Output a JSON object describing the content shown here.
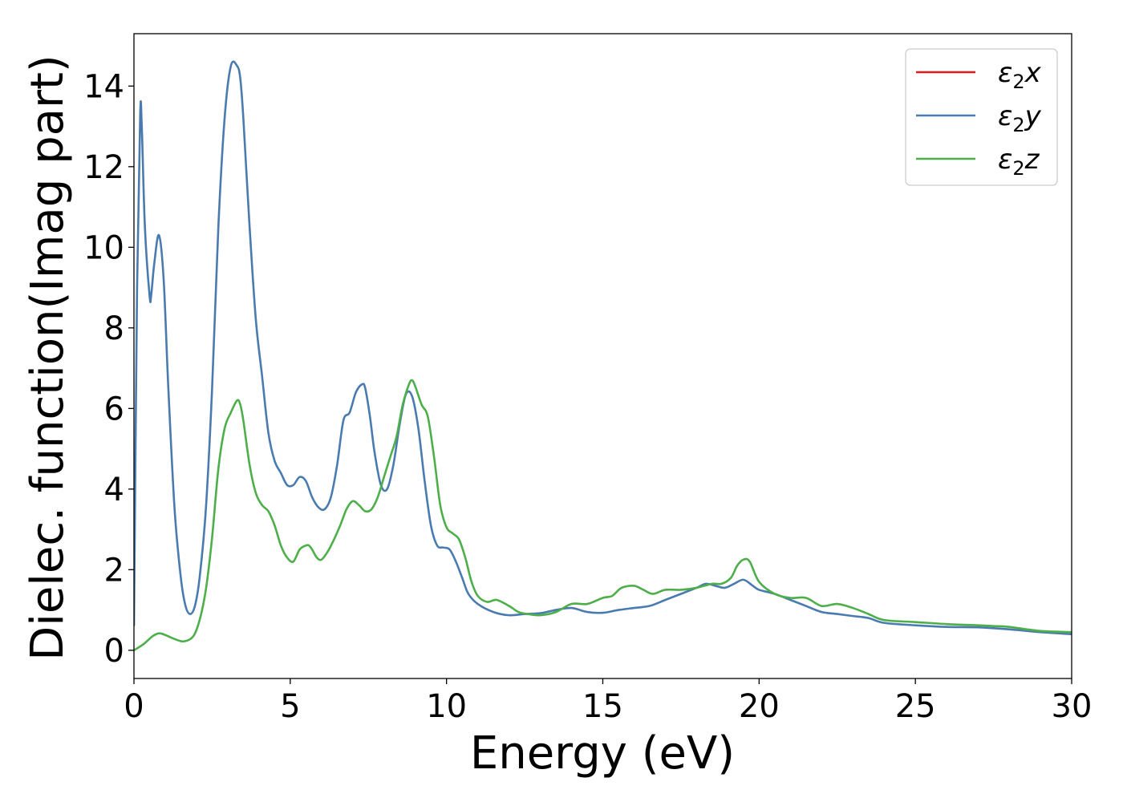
{
  "chart_data": {
    "type": "line",
    "title": "",
    "xlabel": "Energy (eV)",
    "ylabel": "Dielec. function(Imag part)",
    "xlim": [
      0,
      30
    ],
    "ylim": [
      -0.7,
      15.3
    ],
    "xticks": [
      0,
      5,
      10,
      15,
      20,
      25,
      30
    ],
    "yticks": [
      0,
      2,
      4,
      6,
      8,
      10,
      12,
      14
    ],
    "grid": false,
    "legend_position": "top-right",
    "series": [
      {
        "name": "ε2x",
        "legend_base": "ε",
        "legend_sub": "2",
        "legend_suffix": "x",
        "color": "#e41a1c",
        "x": [
          0,
          0.1,
          0.2,
          0.25,
          0.35,
          0.5,
          0.55,
          0.65,
          0.8,
          0.95,
          1.1,
          1.3,
          1.5,
          1.65,
          1.8,
          1.95,
          2.1,
          2.3,
          2.5,
          2.7,
          2.9,
          3.1,
          3.3,
          3.4,
          3.5,
          3.7,
          3.9,
          4.1,
          4.3,
          4.5,
          4.7,
          4.9,
          5.1,
          5.3,
          5.5,
          5.7,
          5.9,
          6.1,
          6.3,
          6.5,
          6.7,
          6.9,
          7.1,
          7.3,
          7.4,
          7.55,
          7.7,
          7.9,
          8.1,
          8.3,
          8.5,
          8.7,
          8.9,
          9.1,
          9.3,
          9.5,
          9.7,
          9.9,
          10.1,
          10.3,
          10.5,
          10.7,
          11,
          11.5,
          12,
          12.5,
          13,
          13.5,
          14,
          14.5,
          15,
          15.5,
          16,
          16.5,
          17,
          17.5,
          18,
          18.3,
          18.6,
          18.9,
          19.2,
          19.5,
          19.8,
          20,
          20.5,
          21,
          21.5,
          22,
          22.5,
          23,
          23.5,
          24,
          25,
          26,
          27,
          28,
          29,
          30
        ],
        "values": [
          0.6,
          9,
          13.3,
          13,
          10.5,
          8.8,
          8.8,
          9.6,
          10.3,
          9.2,
          6.5,
          3.5,
          1.8,
          1.1,
          0.9,
          1.1,
          1.8,
          3.5,
          6.5,
          10.5,
          13.2,
          14.5,
          14.5,
          14.2,
          13.2,
          10.5,
          8.2,
          6.8,
          5.4,
          4.7,
          4.4,
          4.1,
          4.1,
          4.3,
          4.2,
          3.8,
          3.55,
          3.5,
          3.8,
          4.6,
          5.7,
          5.9,
          6.4,
          6.6,
          6.5,
          5.8,
          4.9,
          4.1,
          4,
          4.6,
          5.6,
          6.35,
          6.3,
          5.5,
          4.2,
          3.1,
          2.6,
          2.55,
          2.5,
          2.2,
          1.8,
          1.4,
          1.15,
          0.95,
          0.87,
          0.9,
          0.92,
          1.0,
          1.05,
          0.95,
          0.93,
          1.0,
          1.05,
          1.1,
          1.25,
          1.4,
          1.55,
          1.65,
          1.6,
          1.55,
          1.65,
          1.75,
          1.6,
          1.5,
          1.4,
          1.25,
          1.1,
          0.95,
          0.9,
          0.85,
          0.8,
          0.68,
          0.62,
          0.58,
          0.57,
          0.52,
          0.45,
          0.4
        ],
        "visible": false
      },
      {
        "name": "ε2y",
        "legend_base": "ε",
        "legend_sub": "2",
        "legend_suffix": "y",
        "color": "#4a7bb0",
        "x": [
          0,
          0.1,
          0.2,
          0.25,
          0.35,
          0.5,
          0.55,
          0.65,
          0.8,
          0.95,
          1.1,
          1.3,
          1.5,
          1.65,
          1.8,
          1.95,
          2.1,
          2.3,
          2.5,
          2.7,
          2.9,
          3.1,
          3.3,
          3.4,
          3.5,
          3.7,
          3.9,
          4.1,
          4.3,
          4.5,
          4.7,
          4.9,
          5.1,
          5.3,
          5.5,
          5.7,
          5.9,
          6.1,
          6.3,
          6.5,
          6.7,
          6.9,
          7.1,
          7.3,
          7.4,
          7.55,
          7.7,
          7.9,
          8.1,
          8.3,
          8.5,
          8.7,
          8.9,
          9.1,
          9.3,
          9.5,
          9.7,
          9.9,
          10.1,
          10.3,
          10.5,
          10.7,
          11,
          11.5,
          12,
          12.5,
          13,
          13.5,
          14,
          14.5,
          15,
          15.5,
          16,
          16.5,
          17,
          17.5,
          18,
          18.3,
          18.6,
          18.9,
          19.2,
          19.5,
          19.8,
          20,
          20.5,
          21,
          21.5,
          22,
          22.5,
          23,
          23.5,
          24,
          25,
          26,
          27,
          28,
          29,
          30
        ],
        "values": [
          0.6,
          9,
          13.3,
          13,
          10.5,
          8.8,
          8.8,
          9.6,
          10.3,
          9.2,
          6.5,
          3.5,
          1.8,
          1.1,
          0.9,
          1.1,
          1.8,
          3.5,
          6.5,
          10.5,
          13.2,
          14.5,
          14.5,
          14.2,
          13.2,
          10.5,
          8.2,
          6.8,
          5.4,
          4.7,
          4.4,
          4.1,
          4.1,
          4.3,
          4.2,
          3.8,
          3.55,
          3.5,
          3.8,
          4.6,
          5.7,
          5.9,
          6.4,
          6.6,
          6.5,
          5.8,
          4.9,
          4.1,
          4,
          4.6,
          5.6,
          6.35,
          6.3,
          5.5,
          4.2,
          3.1,
          2.6,
          2.55,
          2.5,
          2.2,
          1.8,
          1.4,
          1.15,
          0.95,
          0.87,
          0.9,
          0.92,
          1.0,
          1.05,
          0.95,
          0.93,
          1.0,
          1.05,
          1.1,
          1.25,
          1.4,
          1.55,
          1.65,
          1.6,
          1.55,
          1.65,
          1.75,
          1.6,
          1.5,
          1.4,
          1.25,
          1.1,
          0.95,
          0.9,
          0.85,
          0.8,
          0.68,
          0.62,
          0.58,
          0.57,
          0.52,
          0.45,
          0.4
        ],
        "visible": true
      },
      {
        "name": "ε2z",
        "legend_base": "ε",
        "legend_sub": "2",
        "legend_suffix": "z",
        "color": "#4daf4a",
        "x": [
          0,
          0.3,
          0.6,
          0.8,
          1.0,
          1.3,
          1.6,
          1.9,
          2.1,
          2.3,
          2.5,
          2.7,
          2.9,
          3.1,
          3.3,
          3.4,
          3.5,
          3.7,
          3.9,
          4.1,
          4.3,
          4.5,
          4.7,
          4.9,
          5.1,
          5.3,
          5.5,
          5.6,
          5.7,
          5.85,
          6.0,
          6.2,
          6.4,
          6.6,
          6.8,
          7.0,
          7.2,
          7.4,
          7.6,
          7.8,
          8.0,
          8.2,
          8.4,
          8.6,
          8.8,
          8.9,
          9.0,
          9.2,
          9.4,
          9.6,
          9.8,
          10.0,
          10.2,
          10.4,
          10.6,
          10.8,
          11.0,
          11.3,
          11.6,
          12.0,
          12.3,
          12.6,
          13.0,
          13.5,
          14.0,
          14.5,
          15.0,
          15.3,
          15.6,
          16.0,
          16.3,
          16.6,
          17.0,
          17.5,
          18.0,
          18.5,
          18.8,
          19.1,
          19.3,
          19.5,
          19.7,
          20.0,
          20.5,
          21.0,
          21.5,
          22.0,
          22.5,
          23.0,
          23.5,
          24.0,
          25.0,
          26.0,
          27.0,
          27.5,
          28.0,
          29.0,
          30.0
        ],
        "values": [
          0.0,
          0.15,
          0.35,
          0.42,
          0.38,
          0.28,
          0.22,
          0.35,
          0.75,
          1.5,
          2.8,
          4.5,
          5.5,
          5.9,
          6.2,
          6.1,
          5.7,
          4.6,
          3.9,
          3.6,
          3.45,
          3.1,
          2.6,
          2.3,
          2.2,
          2.5,
          2.6,
          2.6,
          2.5,
          2.3,
          2.25,
          2.45,
          2.75,
          3.1,
          3.5,
          3.7,
          3.6,
          3.45,
          3.5,
          3.8,
          4.3,
          4.8,
          5.3,
          6.1,
          6.6,
          6.7,
          6.55,
          6.1,
          5.8,
          4.8,
          3.6,
          3.05,
          2.9,
          2.75,
          2.3,
          1.7,
          1.35,
          1.2,
          1.25,
          1.1,
          0.95,
          0.9,
          0.87,
          0.95,
          1.15,
          1.15,
          1.3,
          1.35,
          1.55,
          1.6,
          1.5,
          1.4,
          1.5,
          1.5,
          1.55,
          1.65,
          1.65,
          1.8,
          2.1,
          2.25,
          2.2,
          1.7,
          1.4,
          1.3,
          1.3,
          1.1,
          1.15,
          1.05,
          0.9,
          0.75,
          0.7,
          0.65,
          0.62,
          0.6,
          0.58,
          0.48,
          0.45
        ],
        "visible": true
      }
    ]
  }
}
